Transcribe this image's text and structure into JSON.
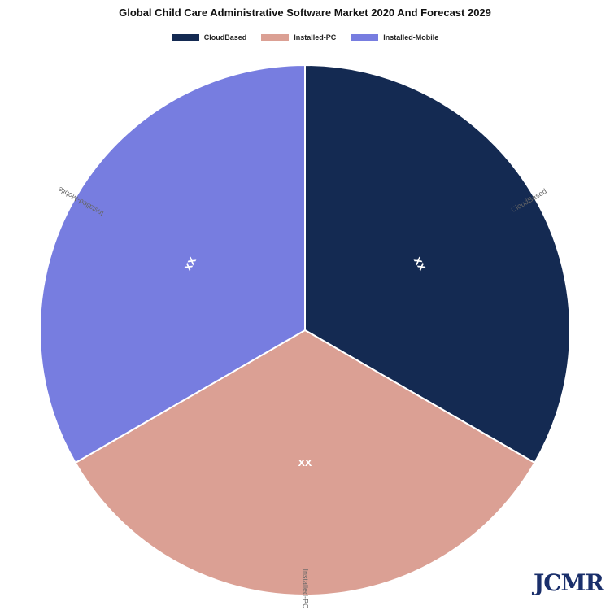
{
  "chart_data": {
    "type": "pie",
    "title": "Global Child Care Administrative Software Market 2020 And Forecast 2029",
    "categories": [
      "CloudBased",
      "Installed-PC",
      "Installed-Mobile"
    ],
    "values": [
      1,
      1,
      1
    ],
    "data_labels": [
      "xx",
      "xx",
      "xx"
    ],
    "colors": [
      "#142a52",
      "#dba094",
      "#777de0"
    ],
    "legend_position": "top-center"
  },
  "watermark": "JCMR"
}
